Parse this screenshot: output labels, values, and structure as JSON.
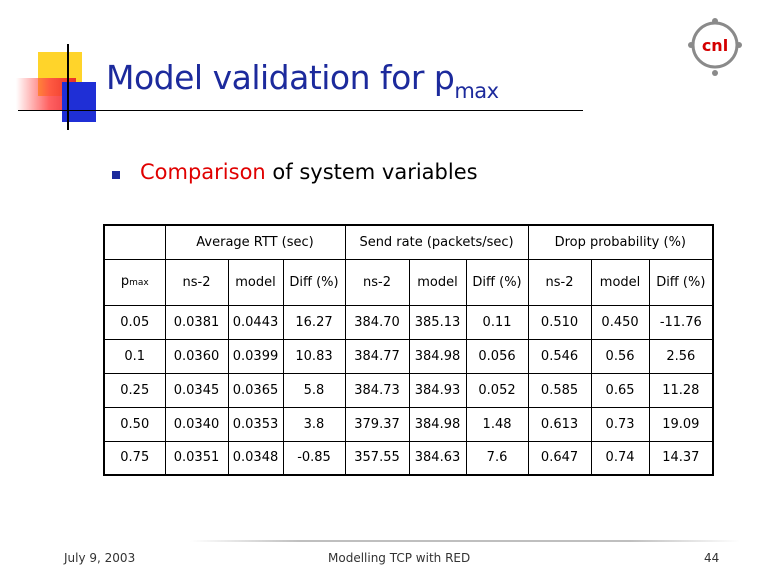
{
  "slide": {
    "title_main": "Model validation for p",
    "title_sub": "max",
    "bullet": {
      "highlight": "Comparison",
      "rest": " of system variables"
    },
    "logo": {
      "icon": "cnl-logo-icon",
      "text": "cnl"
    }
  },
  "table": {
    "groups": [
      "Average RTT (sec)",
      "Send rate (packets/sec)",
      "Drop probability (%)"
    ],
    "pmax_header": {
      "main": "p",
      "sub": "max"
    },
    "subheaders": [
      "ns-2",
      "model",
      "Diff (%)",
      "ns-2",
      "model",
      "Diff (%)",
      "ns-2",
      "model",
      "Diff (%)"
    ],
    "rows": [
      [
        "0.05",
        "0.0381",
        "0.0443",
        "16.27",
        "384.70",
        "385.13",
        "0.11",
        "0.510",
        "0.450",
        "-11.76"
      ],
      [
        "0.1",
        "0.0360",
        "0.0399",
        "10.83",
        "384.77",
        "384.98",
        "0.056",
        "0.546",
        "0.56",
        "2.56"
      ],
      [
        "0.25",
        "0.0345",
        "0.0365",
        "5.8",
        "384.73",
        "384.93",
        "0.052",
        "0.585",
        "0.65",
        "11.28"
      ],
      [
        "0.50",
        "0.0340",
        "0.0353",
        "3.8",
        "379.37",
        "384.98",
        "1.48",
        "0.613",
        "0.73",
        "19.09"
      ],
      [
        "0.75",
        "0.0351",
        "0.0348",
        "-0.85",
        "357.55",
        "384.63",
        "7.6",
        "0.647",
        "0.74",
        "14.37"
      ]
    ]
  },
  "footer": {
    "date": "July 9, 2003",
    "center": "Modelling TCP with RED",
    "page": "44"
  },
  "colors": {
    "title": "#1c2a9c",
    "highlight": "#e00000",
    "accent_yellow": "#ffd42a",
    "accent_blue": "#1f2fd6",
    "accent_red": "#e61e28"
  }
}
